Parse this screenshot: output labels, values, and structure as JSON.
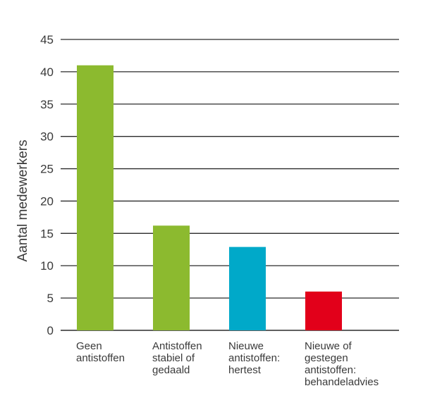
{
  "chart_data": {
    "type": "bar",
    "categories": [
      [
        "Geen",
        "antistoffen"
      ],
      [
        "Antistoffen",
        "stabiel of",
        "gedaald"
      ],
      [
        "Nieuwe",
        "antistoffen:",
        "hertest"
      ],
      [
        "Nieuwe of",
        "gestegen",
        "antistoffen:",
        "behandeladvies"
      ]
    ],
    "values": [
      41,
      16.2,
      12.9,
      6
    ],
    "colors": [
      "#8cba2f",
      "#8cba2f",
      "#00a9c9",
      "#e2001a"
    ],
    "title": "",
    "xlabel": "",
    "ylabel": "Aantal medewerkers",
    "ylim": [
      0,
      45
    ],
    "yticks": [
      0,
      5,
      10,
      15,
      20,
      25,
      30,
      35,
      40,
      45
    ],
    "grid": true,
    "legend": "none"
  }
}
